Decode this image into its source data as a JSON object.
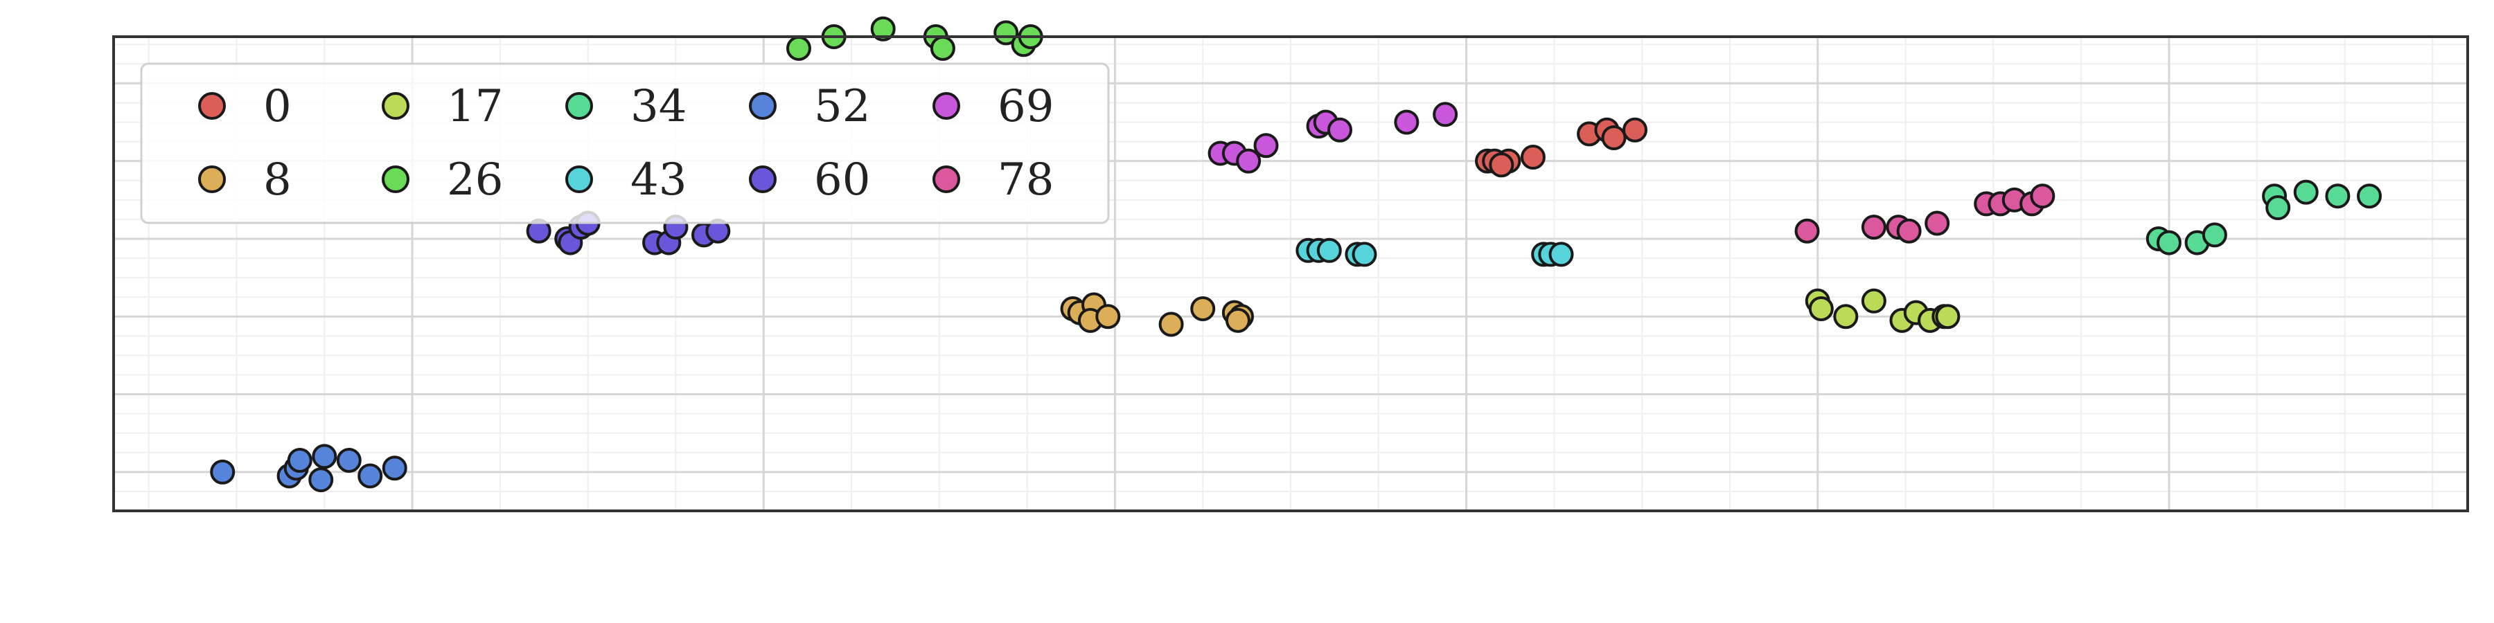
{
  "chart_data": {
    "type": "scatter",
    "title": "",
    "xlabel": "",
    "ylabel": "",
    "xlim": [
      -0.85,
      5.85
    ],
    "ylim": [
      -0.5,
      5.6
    ],
    "grid": true,
    "axis_tick_labels": false,
    "legend": {
      "placement": "top-left",
      "columns": 5,
      "alpha": 0.8
    },
    "series": [
      {
        "name": "0",
        "color": "#db5f57",
        "x": [
          3.06,
          3.08,
          3.12,
          3.1,
          3.19,
          3.35,
          3.4,
          3.42,
          3.48
        ],
        "y": [
          4.0,
          4.0,
          4.0,
          3.95,
          4.05,
          4.35,
          4.4,
          4.3,
          4.4
        ]
      },
      {
        "name": "8",
        "color": "#dbae57",
        "x": [
          1.88,
          1.9,
          1.94,
          1.93,
          1.98,
          2.16,
          2.25,
          2.34,
          2.36,
          2.35
        ],
        "y": [
          2.1,
          2.05,
          2.15,
          1.95,
          2.0,
          1.9,
          2.1,
          2.05,
          2.0,
          1.95
        ]
      },
      {
        "name": "17",
        "color": "#b9db57",
        "x": [
          4.0,
          4.01,
          4.08,
          4.16,
          4.24,
          4.28,
          4.32,
          4.36,
          4.37
        ],
        "y": [
          2.2,
          2.1,
          2.0,
          2.2,
          1.95,
          2.05,
          1.95,
          2.0,
          2.0
        ]
      },
      {
        "name": "26",
        "color": "#69db57",
        "x": [
          1.1,
          1.2,
          1.34,
          1.49,
          1.51,
          1.69,
          1.74,
          1.76
        ],
        "y": [
          5.45,
          5.6,
          5.7,
          5.6,
          5.45,
          5.65,
          5.5,
          5.6
        ]
      },
      {
        "name": "34",
        "color": "#57db94",
        "x": [
          4.97,
          5.0,
          5.08,
          5.13,
          5.3,
          5.31,
          5.39,
          5.48,
          5.57
        ],
        "y": [
          3.0,
          2.95,
          2.95,
          3.05,
          3.55,
          3.4,
          3.6,
          3.55,
          3.55
        ]
      },
      {
        "name": "43",
        "color": "#57d3db",
        "x": [
          2.55,
          2.58,
          2.61,
          2.69,
          2.71,
          3.22,
          3.24,
          3.27
        ],
        "y": [
          2.85,
          2.85,
          2.85,
          2.8,
          2.8,
          2.8,
          2.8,
          2.8
        ]
      },
      {
        "name": "52",
        "color": "#5784db",
        "x": [
          -0.54,
          -0.35,
          -0.33,
          -0.32,
          -0.26,
          -0.25,
          -0.18,
          -0.12,
          -0.05
        ],
        "y": [
          0.0,
          -0.05,
          0.05,
          0.15,
          -0.1,
          0.2,
          0.15,
          -0.05,
          0.05
        ]
      },
      {
        "name": "60",
        "color": "#6957db",
        "x": [
          0.36,
          0.44,
          0.45,
          0.48,
          0.5,
          0.69,
          0.73,
          0.75,
          0.83,
          0.87
        ],
        "y": [
          3.1,
          3.0,
          2.95,
          3.15,
          3.2,
          2.95,
          2.95,
          3.15,
          3.05,
          3.1
        ]
      },
      {
        "name": "69",
        "color": "#c957db",
        "x": [
          2.3,
          2.34,
          2.38,
          2.43,
          2.58,
          2.6,
          2.64,
          2.83,
          2.94
        ],
        "y": [
          4.1,
          4.1,
          4.0,
          4.2,
          4.45,
          4.5,
          4.4,
          4.5,
          4.6
        ]
      },
      {
        "name": "78",
        "color": "#db579e",
        "x": [
          3.97,
          4.16,
          4.23,
          4.26,
          4.34,
          4.48,
          4.52,
          4.56,
          4.61,
          4.64
        ],
        "y": [
          3.1,
          3.15,
          3.15,
          3.1,
          3.2,
          3.45,
          3.45,
          3.5,
          3.45,
          3.55
        ]
      }
    ]
  }
}
